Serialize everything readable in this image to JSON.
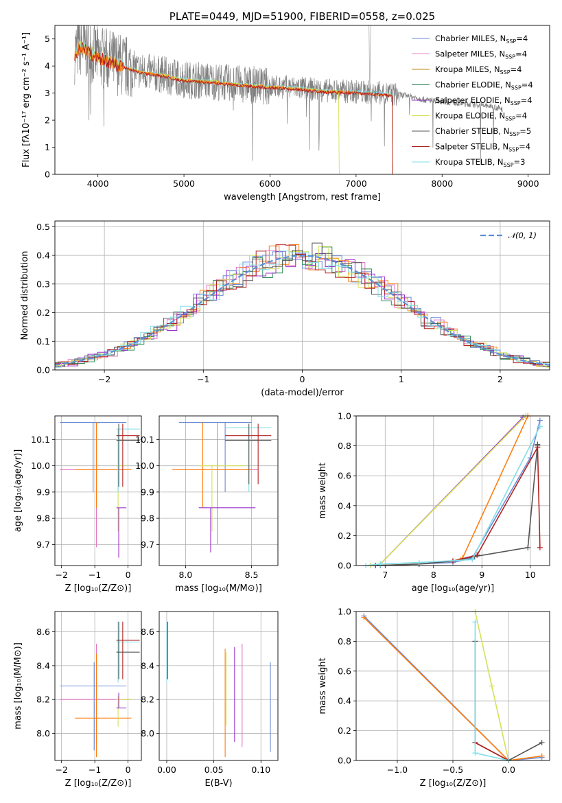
{
  "chart_data": [
    {
      "type": "line",
      "title": "PLATE=0449, MJD=51900, FIBERID=0558, z=0.025",
      "xlabel": "wavelength [Angstrom, rest frame]",
      "ylabel": "Flux [fλ10⁻¹⁷ erg cm⁻² s⁻¹ A⁻¹]",
      "xlim": [
        3500,
        9250
      ],
      "ylim": [
        0,
        5.5
      ],
      "xticks": [
        "4000",
        "5000",
        "6000",
        "7000",
        "8000",
        "9000"
      ],
      "yticks": [
        "0",
        "1",
        "2",
        "3",
        "4",
        "5"
      ],
      "legend_position": "top-right",
      "data_continuum": [
        [
          3730,
          4.5
        ],
        [
          3800,
          4.75
        ],
        [
          3900,
          4.55
        ],
        [
          4000,
          4.35
        ],
        [
          4100,
          4.25
        ],
        [
          4300,
          4.0
        ],
        [
          4500,
          3.8
        ],
        [
          4800,
          3.65
        ],
        [
          5000,
          3.5
        ],
        [
          5300,
          3.45
        ],
        [
          5600,
          3.35
        ],
        [
          6000,
          3.25
        ],
        [
          6300,
          3.2
        ],
        [
          6600,
          3.1
        ],
        [
          7000,
          3.05
        ],
        [
          7300,
          3.0
        ],
        [
          7600,
          2.9
        ],
        [
          7800,
          2.75
        ],
        [
          8000,
          2.7
        ],
        [
          8300,
          2.6
        ],
        [
          8600,
          2.5
        ],
        [
          8700,
          2.4
        ]
      ],
      "legend": [
        {
          "label": "Chabrier MILES, N",
          "sub": "SSP",
          "tail": "=4",
          "color": "#6b8bd6"
        },
        {
          "label": "Salpeter MILES, N",
          "sub": "SSP",
          "tail": "=4",
          "color": "#e377c2"
        },
        {
          "label": "Kroupa MILES, N",
          "sub": "SSP",
          "tail": "=4",
          "color": "#b8860b"
        },
        {
          "label": "Chabrier ELODIE, N",
          "sub": "SSP",
          "tail": "=4",
          "color": "#2e8b57"
        },
        {
          "label": "Salpeter ELODIE, N",
          "sub": "SSP",
          "tail": "=4",
          "color": "#9932cc"
        },
        {
          "label": "Kroupa ELODIE, N",
          "sub": "SSP",
          "tail": "=4",
          "color": "#d4e157"
        },
        {
          "label": "Chabrier STELIB, N",
          "sub": "SSP",
          "tail": "=5",
          "color": "#555555"
        },
        {
          "label": "Salpeter STELIB, N",
          "sub": "SSP",
          "tail": "=4",
          "color": "#b22222"
        },
        {
          "label": "Kroupa STELIB, N",
          "sub": "SSP",
          "tail": "=3",
          "color": "#80deea"
        }
      ]
    },
    {
      "type": "line",
      "xlabel": "(data-model)/error",
      "ylabel": "Normed distribution",
      "xlim": [
        -2.5,
        2.5
      ],
      "ylim": [
        0,
        0.52
      ],
      "xticks": [
        "−2",
        "−1",
        "0",
        "1",
        "2"
      ],
      "yticks": [
        "0.0",
        "0.1",
        "0.2",
        "0.3",
        "0.4",
        "0.5"
      ],
      "grid": true,
      "legend_position": "top-right",
      "legend": [
        {
          "label": "𝒩(0, 1)",
          "color": "#5b8ed6"
        }
      ],
      "series_colors": [
        "#6b8bd6",
        "#e377c2",
        "#ff7f0e",
        "#2e8b57",
        "#9932cc",
        "#d4e157",
        "#555555",
        "#b22222",
        "#80deea"
      ]
    },
    {
      "type": "scatter",
      "xlabel": "Z [log₁₀(Z/Z⊙)]",
      "ylabel": "age  [log₁₀(age/yr)]",
      "xlim": [
        -2.2,
        0.4
      ],
      "ylim": [
        9.62,
        10.19
      ],
      "xticks": [
        "−2",
        "−1",
        "0"
      ],
      "yticks": [
        "9.7",
        "9.8",
        "9.9",
        "10.0",
        "10.1"
      ],
      "grid": true
    },
    {
      "type": "scatter",
      "xlabel": "mass [log₁₀(M/M⊙)]",
      "xlim": [
        7.8,
        8.7
      ],
      "ylim": [
        9.62,
        10.19
      ],
      "xticks": [
        "8.0",
        "8.5"
      ],
      "yticks": [
        "9.7",
        "9.8",
        "9.9",
        "10.0",
        "10.1"
      ],
      "grid": true
    },
    {
      "type": "line",
      "xlabel": "age  [log₁₀(age/yr)]",
      "ylabel": "mass weight",
      "xlim": [
        6.4,
        10.4
      ],
      "ylim": [
        0,
        1
      ],
      "xticks": [
        "7",
        "8",
        "9",
        "10"
      ],
      "yticks": [
        "0.0",
        "0.2",
        "0.4",
        "0.6",
        "0.8",
        "1.0"
      ],
      "grid": true,
      "series": [
        {
          "color": "#6b8bd6",
          "x": [
            6.9,
            7.7,
            8.4,
            8.8,
            10.0,
            10.2
          ],
          "y": [
            0.0,
            0.01,
            0.02,
            0.05,
            0.72,
            0.97
          ]
        },
        {
          "color": "#9932cc",
          "x": [
            6.7,
            6.9,
            9.85
          ],
          "y": [
            0.0,
            0.01,
            0.99
          ]
        },
        {
          "color": "#ff7f0e",
          "x": [
            6.8,
            7.7,
            8.4,
            8.6,
            9.95
          ],
          "y": [
            0.0,
            0.01,
            0.03,
            0.05,
            1.0
          ]
        },
        {
          "color": "#d4e157",
          "x": [
            6.7,
            6.9,
            9.9
          ],
          "y": [
            0.0,
            0.01,
            1.0
          ]
        },
        {
          "color": "#555555",
          "x": [
            6.8,
            7.7,
            8.4,
            8.85,
            9.95,
            10.15,
            10.15
          ],
          "y": [
            0.0,
            0.01,
            0.03,
            0.06,
            0.12,
            0.81,
            0.8
          ]
        },
        {
          "color": "#b22222",
          "x": [
            8.4,
            8.9,
            10.15,
            10.2
          ],
          "y": [
            0.03,
            0.07,
            0.79,
            0.12
          ]
        },
        {
          "color": "#80deea",
          "x": [
            6.6,
            6.9,
            7.7,
            8.8,
            10.2
          ],
          "y": [
            0.0,
            0.01,
            0.02,
            0.04,
            0.93
          ]
        }
      ]
    },
    {
      "type": "scatter",
      "xlabel": "Z [log₁₀(Z/Z⊙)]",
      "ylabel": "mass [log₁₀(M/M⊙)]",
      "xlim": [
        -2.2,
        0.4
      ],
      "ylim": [
        7.84,
        8.72
      ],
      "xticks": [
        "−2",
        "−1",
        "0"
      ],
      "yticks": [
        "8.0",
        "8.2",
        "8.4",
        "8.6"
      ],
      "grid": true
    },
    {
      "type": "scatter",
      "xlabel": "E(B-V)",
      "xlim": [
        -0.008,
        0.118
      ],
      "ylim": [
        7.84,
        8.72
      ],
      "xticks": [
        "0.00",
        "0.05",
        "0.10"
      ],
      "yticks": [
        "8.0",
        "8.2",
        "8.4",
        "8.6"
      ],
      "grid": true
    },
    {
      "type": "line",
      "xlabel": "Z [log₁₀(Z/Z⊙)]",
      "ylabel": "mass weight",
      "xlim": [
        -1.37,
        0.37
      ],
      "ylim": [
        0,
        1
      ],
      "xticks": [
        "−1.0",
        "−0.5",
        "0.0"
      ],
      "yticks": [
        "0.0",
        "0.2",
        "0.4",
        "0.6",
        "0.8",
        "1.0"
      ],
      "grid": true,
      "series": [
        {
          "color": "#6b8bd6",
          "x": [
            -1.3,
            0.0,
            0.3
          ],
          "y": [
            0.97,
            0.0,
            0.02
          ]
        },
        {
          "color": "#ff7f0e",
          "x": [
            -1.3,
            0.0,
            0.3
          ],
          "y": [
            0.96,
            0.0,
            0.03
          ]
        },
        {
          "color": "#d4e157",
          "x": [
            -0.3,
            -0.15,
            0.0
          ],
          "y": [
            1.0,
            0.5,
            0.0
          ]
        },
        {
          "color": "#555555",
          "x": [
            -0.3,
            -0.3,
            0.0,
            0.3
          ],
          "y": [
            0.8,
            0.12,
            0.0,
            0.12
          ]
        },
        {
          "color": "#b22222",
          "x": [
            -0.3,
            0.0
          ],
          "y": [
            0.12,
            0.0
          ]
        },
        {
          "color": "#80deea",
          "x": [
            -0.3,
            -0.3,
            0.0
          ],
          "y": [
            0.93,
            0.05,
            0.0
          ]
        }
      ]
    }
  ]
}
